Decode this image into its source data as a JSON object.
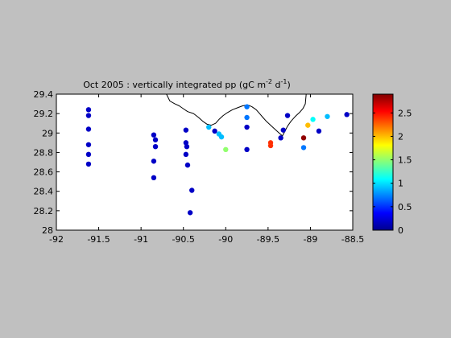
{
  "chart_data": {
    "type": "scatter",
    "title_main": "Oct 2005 : vertically integrated pp (gC m",
    "title_sup1": "-2",
    "title_mid": " d",
    "title_sup2": "-1",
    "title_end": ")",
    "xlabel": "",
    "ylabel": "",
    "xlim": [
      -92,
      -88.5
    ],
    "ylim": [
      28,
      29.4
    ],
    "x_ticks": [
      "-92",
      "-91.5",
      "-91",
      "-90.5",
      "-90",
      "-89.5",
      "-89",
      "-88.5"
    ],
    "y_ticks": [
      "28",
      "28.2",
      "28.4",
      "28.6",
      "28.8",
      "29",
      "29.2",
      "29.4"
    ],
    "colorbar": {
      "range": [
        0,
        2.9
      ],
      "ticks": [
        "0",
        "0.5",
        "1",
        "1.5",
        "2",
        "2.5"
      ],
      "colormap": "jet"
    },
    "grid": false,
    "background_color": "#ffffff",
    "figure_color": "#c0c0c0",
    "coastline_color": "#000000",
    "points": [
      {
        "x": -91.62,
        "y": 29.24,
        "v": 0.2
      },
      {
        "x": -91.62,
        "y": 29.18,
        "v": 0.2
      },
      {
        "x": -91.62,
        "y": 29.04,
        "v": 0.2
      },
      {
        "x": -91.62,
        "y": 28.88,
        "v": 0.2
      },
      {
        "x": -91.62,
        "y": 28.78,
        "v": 0.2
      },
      {
        "x": -91.62,
        "y": 28.68,
        "v": 0.2
      },
      {
        "x": -90.85,
        "y": 28.98,
        "v": 0.2
      },
      {
        "x": -90.83,
        "y": 28.93,
        "v": 0.2
      },
      {
        "x": -90.83,
        "y": 28.86,
        "v": 0.2
      },
      {
        "x": -90.85,
        "y": 28.71,
        "v": 0.2
      },
      {
        "x": -90.85,
        "y": 28.54,
        "v": 0.2
      },
      {
        "x": -90.47,
        "y": 29.03,
        "v": 0.2
      },
      {
        "x": -90.47,
        "y": 28.9,
        "v": 0.2
      },
      {
        "x": -90.46,
        "y": 28.86,
        "v": 0.2
      },
      {
        "x": -90.47,
        "y": 28.78,
        "v": 0.2
      },
      {
        "x": -90.45,
        "y": 28.67,
        "v": 0.2
      },
      {
        "x": -90.4,
        "y": 28.41,
        "v": 0.2
      },
      {
        "x": -90.42,
        "y": 28.18,
        "v": 0.2
      },
      {
        "x": -90.2,
        "y": 29.06,
        "v": 0.9
      },
      {
        "x": -90.13,
        "y": 29.02,
        "v": 0.2
      },
      {
        "x": -90.08,
        "y": 28.99,
        "v": 0.9
      },
      {
        "x": -90.05,
        "y": 28.96,
        "v": 0.9
      },
      {
        "x": -90.0,
        "y": 28.83,
        "v": 1.5
      },
      {
        "x": -89.75,
        "y": 29.27,
        "v": 0.7
      },
      {
        "x": -89.75,
        "y": 29.16,
        "v": 0.7
      },
      {
        "x": -89.75,
        "y": 29.06,
        "v": 0.2
      },
      {
        "x": -89.75,
        "y": 28.83,
        "v": 0.2
      },
      {
        "x": -89.47,
        "y": 28.9,
        "v": 2.4
      },
      {
        "x": -89.47,
        "y": 28.87,
        "v": 2.4
      },
      {
        "x": -89.35,
        "y": 28.95,
        "v": 0.2
      },
      {
        "x": -89.32,
        "y": 29.03,
        "v": 0.2
      },
      {
        "x": -89.27,
        "y": 29.18,
        "v": 0.2
      },
      {
        "x": -89.08,
        "y": 28.95,
        "v": 2.85
      },
      {
        "x": -89.08,
        "y": 28.85,
        "v": 0.7
      },
      {
        "x": -89.03,
        "y": 29.08,
        "v": 2.0
      },
      {
        "x": -88.97,
        "y": 29.14,
        "v": 1.1
      },
      {
        "x": -88.9,
        "y": 29.02,
        "v": 0.2
      },
      {
        "x": -88.8,
        "y": 29.17,
        "v": 0.9
      },
      {
        "x": -88.57,
        "y": 29.19,
        "v": 0.2
      }
    ]
  }
}
